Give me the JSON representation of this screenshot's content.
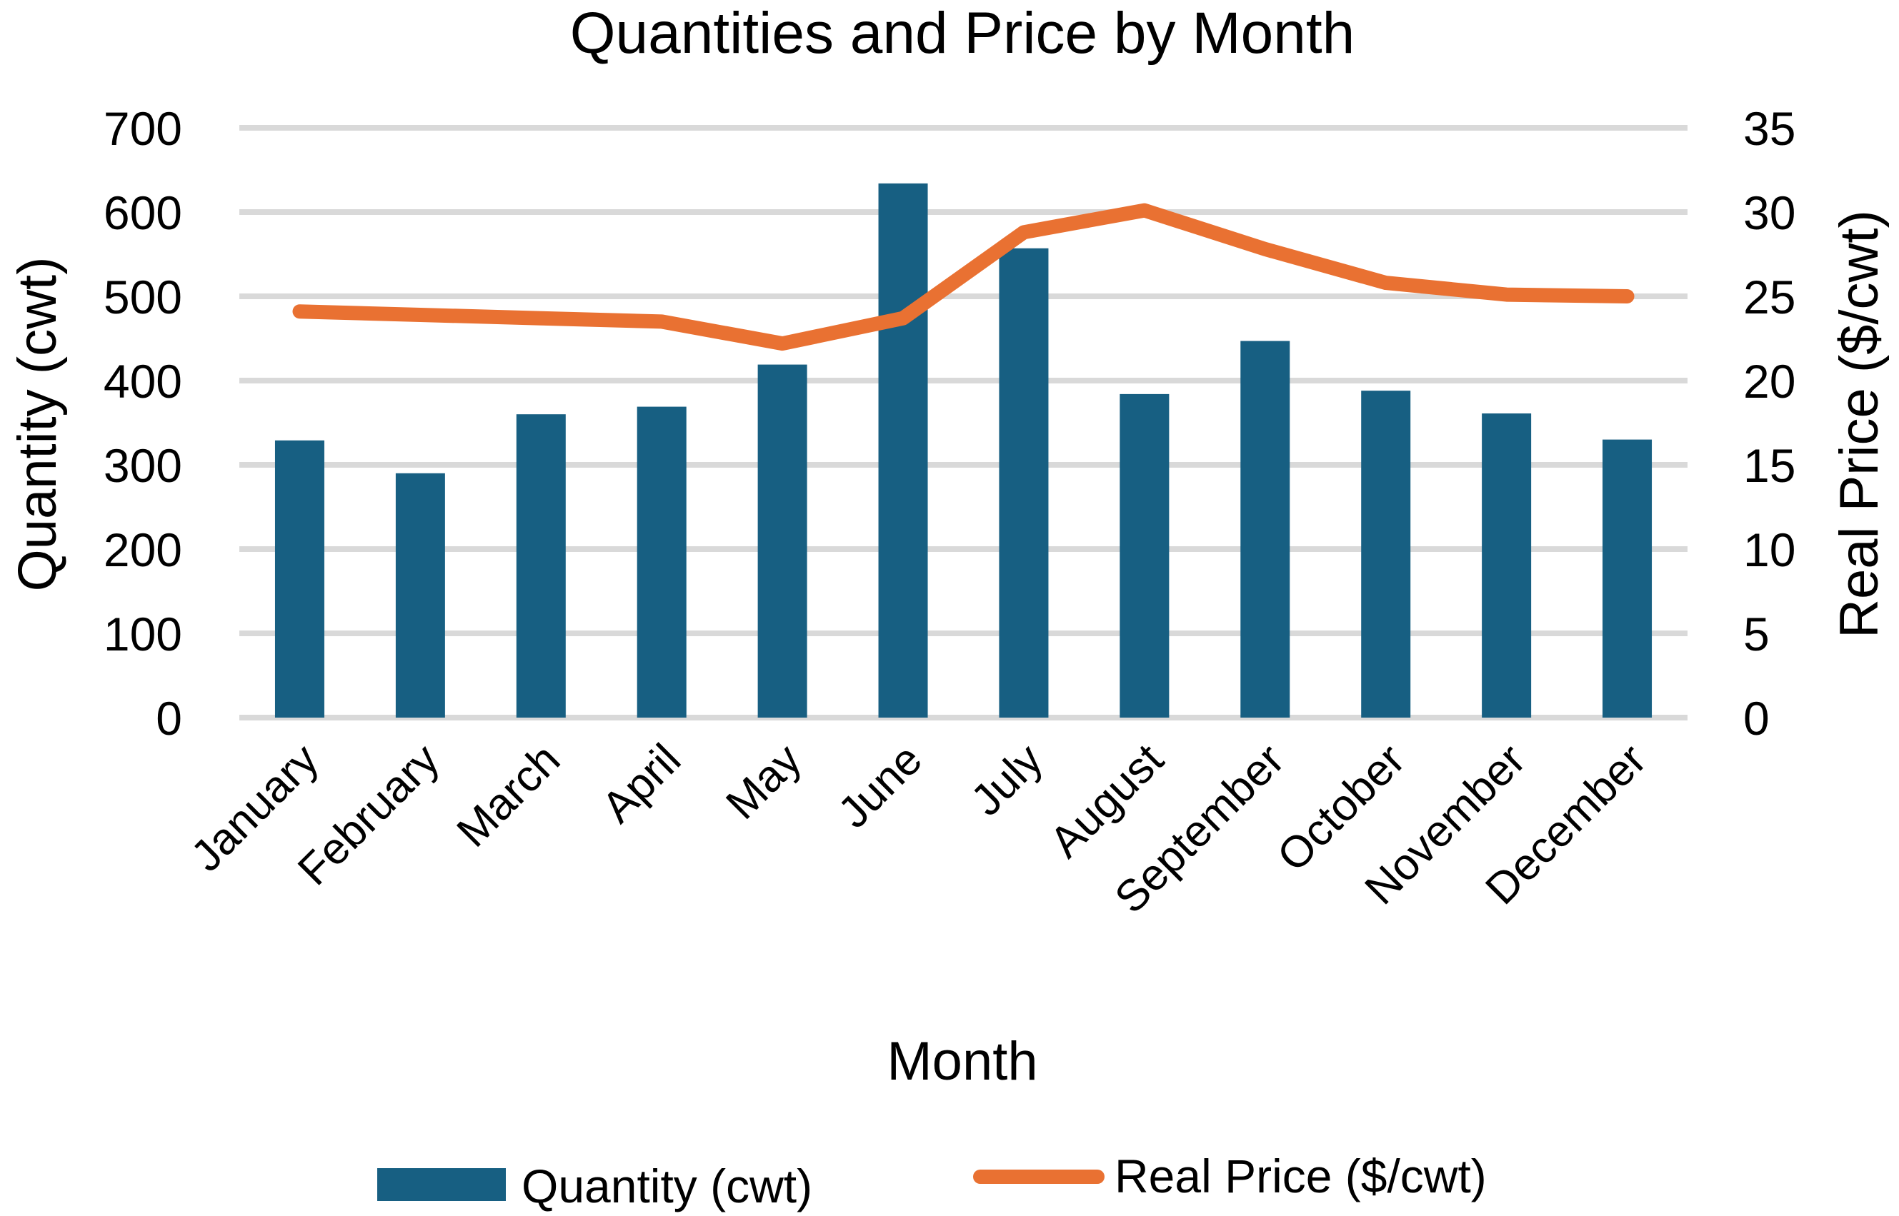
{
  "chart_data": {
    "type": "bar+line",
    "title": "Quantities and Price by Month",
    "xlabel": "Month",
    "ylabel": "Quantity (cwt)",
    "y2label": "Real Price ($/cwt)",
    "categories": [
      "January",
      "February",
      "March",
      "April",
      "May",
      "June",
      "July",
      "August",
      "September",
      "October",
      "November",
      "December"
    ],
    "series": [
      {
        "name": "Quantity (cwt)",
        "type": "bar",
        "axis": "left",
        "color": "#175F82",
        "values": [
          329,
          290,
          360,
          369,
          419,
          634,
          557,
          384,
          447,
          388,
          361,
          330
        ]
      },
      {
        "name": "Real Price ($/cwt)",
        "type": "line",
        "axis": "right",
        "color": "#E97132",
        "values": [
          24.1,
          23.9,
          23.7,
          23.5,
          22.2,
          23.7,
          28.8,
          30.1,
          27.8,
          25.8,
          25.1,
          25.0
        ]
      }
    ],
    "ylim": [
      0,
      700
    ],
    "y2lim": [
      0,
      35
    ],
    "yticks": [
      "0",
      "100",
      "200",
      "300",
      "400",
      "500",
      "600",
      "700"
    ],
    "y2ticks": [
      "0",
      "5",
      "10",
      "15",
      "20",
      "25",
      "30",
      "35"
    ],
    "grid": true,
    "legend_position": "bottom"
  },
  "colors": {
    "bar": "#175F82",
    "line": "#E97132",
    "grid": "#D9D9D9"
  }
}
